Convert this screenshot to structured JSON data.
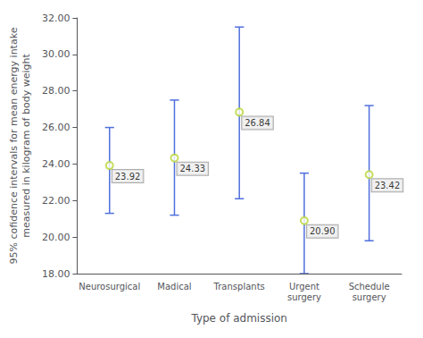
{
  "chart_data": {
    "type": "errorbar",
    "categories": [
      "Neurosurgical",
      "Madical",
      "Transplants",
      "Urgent\nsurgery",
      "Schedule\nsurgery"
    ],
    "values": [
      23.92,
      24.33,
      26.84,
      20.9,
      23.42
    ],
    "value_labels": [
      "23.92",
      "24.33",
      "26.84",
      "20.90",
      "23.42"
    ],
    "lower": [
      21.3,
      21.2,
      22.1,
      18.0,
      19.8
    ],
    "upper": [
      26.0,
      27.5,
      31.5,
      23.5,
      27.2
    ],
    "xlabel": "Type of admission",
    "ylabel": "95% cofidence intervals for mean energy intake\nmeasured in kilogram of body weight",
    "ylim": [
      18.0,
      32.0
    ],
    "yticks": [
      {
        "value": 18.0,
        "label": "18.00"
      },
      {
        "value": 20.0,
        "label": "20.00"
      },
      {
        "value": 22.0,
        "label": "22.00"
      },
      {
        "value": 24.0,
        "label": "24.00"
      },
      {
        "value": 26.0,
        "label": "26.00"
      },
      {
        "value": 28.0,
        "label": "28.00"
      },
      {
        "value": 30.0,
        "label": "30.00"
      },
      {
        "value": 32.0,
        "label": "32.00"
      }
    ],
    "grid": false,
    "data_labels": true
  }
}
